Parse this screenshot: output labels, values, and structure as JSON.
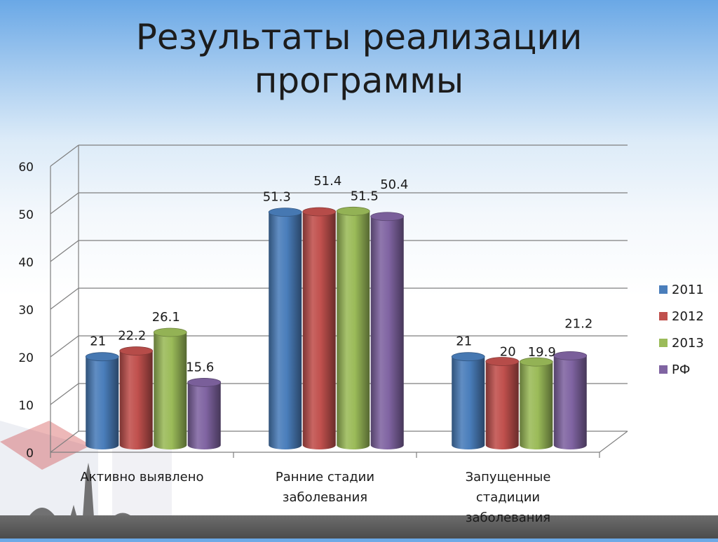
{
  "slide": {
    "title_line1": "Результаты реализации",
    "title_line2": "программы"
  },
  "chart_data": {
    "type": "bar",
    "title": "",
    "xlabel": "",
    "ylabel": "",
    "categories": [
      "Активно выявлено",
      "Ранние стадии заболевания",
      "Запущенные стадиции заболевания"
    ],
    "category_lines": [
      [
        "Активно выявлено"
      ],
      [
        "Ранние стадии",
        "заболевания"
      ],
      [
        "Запущенные",
        "стадиции",
        "заболевания"
      ]
    ],
    "series": [
      {
        "name": "2011",
        "values": [
          21,
          51.3,
          21
        ],
        "color": "#4a7ebb"
      },
      {
        "name": "2012",
        "values": [
          22.2,
          51.4,
          20
        ],
        "color": "#c0504d"
      },
      {
        "name": "2013",
        "values": [
          26.1,
          51.5,
          19.9
        ],
        "color": "#9bbb59"
      },
      {
        "name": "РФ",
        "values": [
          15.6,
          50.4,
          21.2
        ],
        "color": "#8064a2"
      }
    ],
    "ylim": [
      0,
      60
    ],
    "yticks": [
      0,
      10,
      20,
      30,
      40,
      50,
      60
    ],
    "grid": true,
    "legend_position": "right",
    "style": "3d-cylinder"
  }
}
